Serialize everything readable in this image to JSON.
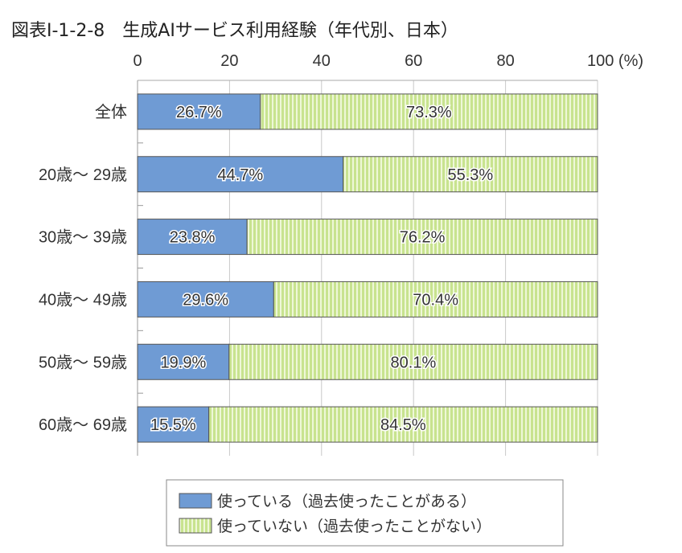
{
  "chart_data": {
    "type": "bar",
    "orientation": "horizontal",
    "stacked": true,
    "title": "図表Ⅰ-1-2-8　生成AIサービス利用経験（年代別、日本）",
    "categories": [
      "全体",
      "20歳～ 29歳",
      "30歳～ 39歳",
      "40歳～ 49歳",
      "50歳～ 59歳",
      "60歳～ 69歳"
    ],
    "series": [
      {
        "name": "使っている（過去使ったことがある）",
        "values": [
          26.7,
          44.7,
          23.8,
          29.6,
          19.9,
          15.5
        ],
        "color": "#6f9bd4"
      },
      {
        "name": "使っていない（過去使ったことがない）",
        "values": [
          73.3,
          55.3,
          76.2,
          70.4,
          80.1,
          84.5
        ],
        "color": "#c8e38f"
      }
    ],
    "data_label_suffix": "%",
    "xlim": [
      0,
      100
    ],
    "xticks": [
      0,
      20,
      40,
      60,
      80,
      100
    ],
    "xtick_labels": [
      "0",
      "20",
      "40",
      "60",
      "80",
      "100 (%)"
    ],
    "grid": "vertical",
    "legend_placement": "bottom"
  }
}
